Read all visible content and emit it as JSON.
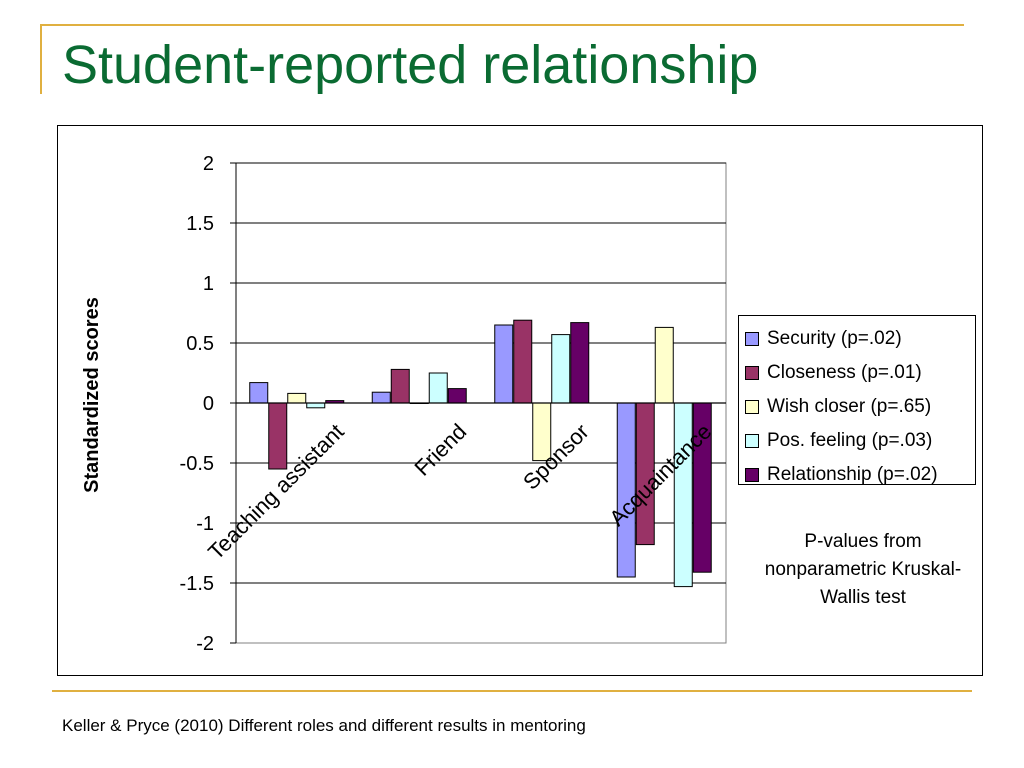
{
  "slide": {
    "title": "Student-reported relationship",
    "footer": "Keller & Pryce (2010) Different roles and different results in mentoring",
    "note": "P-values from nonparametric Kruskal-Wallis test"
  },
  "chart_data": {
    "type": "bar",
    "categories": [
      "Teaching assistant",
      "Friend",
      "Sponsor",
      "Acquaintance"
    ],
    "series": [
      {
        "name": "Security (p=.02)",
        "color": "#9999ff",
        "values": [
          0.17,
          0.09,
          0.65,
          -1.45
        ]
      },
      {
        "name": "Closeness (p=.01)",
        "color": "#993366",
        "values": [
          -0.55,
          0.28,
          0.69,
          -1.18
        ]
      },
      {
        "name": "Wish closer (p=.65)",
        "color": "#ffffcc",
        "values": [
          0.08,
          0.0,
          -0.48,
          0.63
        ]
      },
      {
        "name": "Pos. feeling (p=.03)",
        "color": "#ccffff",
        "values": [
          -0.04,
          0.25,
          0.57,
          -1.53
        ]
      },
      {
        "name": "Relationship (p=.02)",
        "color": "#660066",
        "values": [
          0.02,
          0.12,
          0.67,
          -1.41
        ]
      }
    ],
    "ylabel": "Standardized scores",
    "xlabel": "",
    "ylim": [
      -2,
      2
    ],
    "yticks": [
      2,
      1.5,
      1,
      0.5,
      0,
      -0.5,
      -1,
      -1.5,
      -2
    ],
    "ytick_labels": [
      "2",
      "1.5",
      "1",
      "0.5",
      "0",
      "-0.5",
      "-1",
      "-1.5",
      "-2"
    ],
    "grid": true,
    "legend_position": "right"
  }
}
